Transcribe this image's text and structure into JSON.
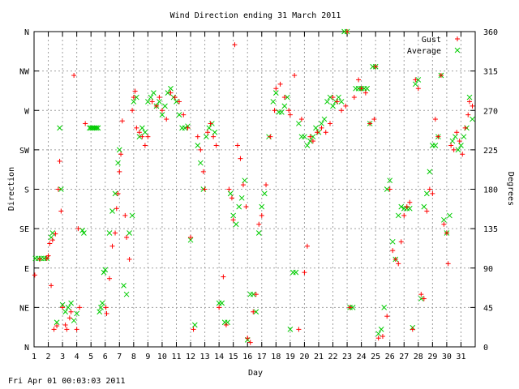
{
  "footer": {
    "timestamp": "Fri Apr 01 00:03:03 2011"
  },
  "chart_data": {
    "type": "scatter",
    "title": "Wind Direction ending 31 March 2011",
    "xlabel": "Day",
    "ylabel_left": "Direction",
    "ylabel_right": "Degrees",
    "xlim": [
      1,
      32
    ],
    "ylim": [
      0,
      360
    ],
    "x_ticks": [
      1,
      2,
      3,
      4,
      5,
      6,
      7,
      8,
      9,
      10,
      11,
      12,
      13,
      14,
      15,
      16,
      17,
      18,
      19,
      20,
      21,
      22,
      23,
      24,
      25,
      26,
      27,
      28,
      29,
      30,
      31
    ],
    "y_ticks_left": [
      {
        "label": "N",
        "value": 0
      },
      {
        "label": "NE",
        "value": 45
      },
      {
        "label": "E",
        "value": 90
      },
      {
        "label": "SE",
        "value": 135
      },
      {
        "label": "S",
        "value": 180
      },
      {
        "label": "SW",
        "value": 225
      },
      {
        "label": "W",
        "value": 270
      },
      {
        "label": "NW",
        "value": 315
      },
      {
        "label": "N",
        "value": 360
      }
    ],
    "y_ticks_right": [
      0,
      45,
      90,
      135,
      180,
      225,
      270,
      315,
      360
    ],
    "grid": true,
    "legend": "top-right",
    "series": [
      {
        "name": "Gust",
        "color": "#ff0000",
        "marker": "plus",
        "points": [
          [
            1.05,
            82
          ],
          [
            1.4,
            100
          ],
          [
            1.9,
            101
          ],
          [
            2.0,
            104
          ],
          [
            2.1,
            118
          ],
          [
            2.3,
            122
          ],
          [
            2.5,
            129
          ],
          [
            2.2,
            70
          ],
          [
            2.4,
            20
          ],
          [
            2.6,
            24
          ],
          [
            2.7,
            180
          ],
          [
            2.8,
            212
          ],
          [
            2.9,
            155
          ],
          [
            3.0,
            45
          ],
          [
            3.2,
            25
          ],
          [
            3.3,
            20
          ],
          [
            3.5,
            33
          ],
          [
            3.6,
            40
          ],
          [
            3.8,
            310
          ],
          [
            4.1,
            135
          ],
          [
            4.0,
            20
          ],
          [
            4.2,
            45
          ],
          [
            4.6,
            255
          ],
          [
            6.05,
            45
          ],
          [
            6.1,
            38
          ],
          [
            6.3,
            78
          ],
          [
            6.5,
            115
          ],
          [
            6.7,
            130
          ],
          [
            6.8,
            158
          ],
          [
            6.9,
            175
          ],
          [
            7.0,
            200
          ],
          [
            7.1,
            220
          ],
          [
            7.2,
            258
          ],
          [
            7.4,
            150
          ],
          [
            7.5,
            125
          ],
          [
            7.7,
            100
          ],
          [
            7.9,
            270
          ],
          [
            8.0,
            285
          ],
          [
            8.1,
            292
          ],
          [
            8.2,
            250
          ],
          [
            8.4,
            245
          ],
          [
            8.6,
            240
          ],
          [
            8.8,
            230
          ],
          [
            9.0,
            240
          ],
          [
            9.3,
            280
          ],
          [
            9.6,
            275
          ],
          [
            9.8,
            285
          ],
          [
            10.0,
            270
          ],
          [
            10.3,
            260
          ],
          [
            10.6,
            290
          ],
          [
            10.9,
            285
          ],
          [
            11.2,
            280
          ],
          [
            11.5,
            265
          ],
          [
            11.8,
            250
          ],
          [
            12.0,
            125
          ],
          [
            12.2,
            20
          ],
          [
            12.5,
            240
          ],
          [
            12.7,
            225
          ],
          [
            12.9,
            200
          ],
          [
            13.0,
            180
          ],
          [
            13.2,
            245
          ],
          [
            13.4,
            255
          ],
          [
            13.6,
            240
          ],
          [
            13.8,
            230
          ],
          [
            14.0,
            45
          ],
          [
            14.3,
            80
          ],
          [
            14.5,
            25
          ],
          [
            14.7,
            180
          ],
          [
            14.9,
            170
          ],
          [
            15.0,
            145
          ],
          [
            15.1,
            345
          ],
          [
            15.3,
            230
          ],
          [
            15.5,
            215
          ],
          [
            15.7,
            185
          ],
          [
            15.9,
            160
          ],
          [
            16.0,
            10
          ],
          [
            16.2,
            5
          ],
          [
            16.4,
            40
          ],
          [
            16.6,
            60
          ],
          [
            16.8,
            140
          ],
          [
            17.0,
            150
          ],
          [
            17.3,
            185
          ],
          [
            17.6,
            240
          ],
          [
            17.9,
            270
          ],
          [
            18.0,
            295
          ],
          [
            18.3,
            300
          ],
          [
            18.6,
            285
          ],
          [
            18.9,
            270
          ],
          [
            19.0,
            265
          ],
          [
            19.3,
            310
          ],
          [
            19.6,
            20
          ],
          [
            19.8,
            260
          ],
          [
            20.0,
            85
          ],
          [
            20.2,
            115
          ],
          [
            20.4,
            240
          ],
          [
            20.6,
            235
          ],
          [
            20.9,
            245
          ],
          [
            21.2,
            250
          ],
          [
            21.5,
            245
          ],
          [
            21.8,
            255
          ],
          [
            22.0,
            285
          ],
          [
            22.3,
            280
          ],
          [
            22.6,
            270
          ],
          [
            22.9,
            275
          ],
          [
            23.0,
            360
          ],
          [
            23.2,
            45
          ],
          [
            23.5,
            285
          ],
          [
            23.8,
            305
          ],
          [
            24.0,
            295
          ],
          [
            24.3,
            290
          ],
          [
            24.6,
            255
          ],
          [
            24.9,
            260
          ],
          [
            25.0,
            320
          ],
          [
            25.2,
            10
          ],
          [
            25.5,
            12
          ],
          [
            25.8,
            35
          ],
          [
            26.0,
            180
          ],
          [
            26.2,
            110
          ],
          [
            26.4,
            100
          ],
          [
            26.6,
            95
          ],
          [
            26.8,
            120
          ],
          [
            27.0,
            150
          ],
          [
            27.2,
            160
          ],
          [
            27.4,
            165
          ],
          [
            27.6,
            20
          ],
          [
            27.8,
            305
          ],
          [
            28.0,
            295
          ],
          [
            28.2,
            60
          ],
          [
            28.4,
            55
          ],
          [
            28.6,
            155
          ],
          [
            28.8,
            180
          ],
          [
            29.0,
            175
          ],
          [
            29.2,
            260
          ],
          [
            29.4,
            240
          ],
          [
            29.6,
            310
          ],
          [
            29.8,
            140
          ],
          [
            30.0,
            130
          ],
          [
            30.1,
            95
          ],
          [
            30.3,
            230
          ],
          [
            30.5,
            225
          ],
          [
            30.7,
            245
          ],
          [
            30.9,
            235
          ],
          [
            31.1,
            220
          ],
          [
            31.3,
            250
          ],
          [
            31.5,
            265
          ],
          [
            31.6,
            280
          ],
          [
            31.8,
            275
          ]
        ]
      },
      {
        "name": "Average",
        "color": "#00cc00",
        "marker": "x",
        "points": [
          [
            1.1,
            101
          ],
          [
            1.3,
            101
          ],
          [
            1.5,
            101
          ],
          [
            1.7,
            101
          ],
          [
            1.9,
            101
          ],
          [
            2.2,
            125
          ],
          [
            2.3,
            130
          ],
          [
            2.6,
            28
          ],
          [
            2.8,
            250
          ],
          [
            2.9,
            180
          ],
          [
            3.0,
            48
          ],
          [
            3.2,
            40
          ],
          [
            3.4,
            45
          ],
          [
            3.6,
            50
          ],
          [
            3.8,
            30
          ],
          [
            4.0,
            38
          ],
          [
            4.4,
            133
          ],
          [
            4.5,
            130
          ],
          [
            4.9,
            250
          ],
          [
            5.0,
            250
          ],
          [
            5.1,
            250
          ],
          [
            5.2,
            250
          ],
          [
            5.3,
            250
          ],
          [
            5.4,
            250
          ],
          [
            5.5,
            250
          ],
          [
            5.6,
            40
          ],
          [
            5.7,
            45
          ],
          [
            5.8,
            50
          ],
          [
            5.9,
            85
          ],
          [
            6.0,
            88
          ],
          [
            6.3,
            130
          ],
          [
            6.5,
            155
          ],
          [
            6.7,
            175
          ],
          [
            6.9,
            210
          ],
          [
            7.0,
            225
          ],
          [
            7.3,
            70
          ],
          [
            7.5,
            60
          ],
          [
            7.7,
            130
          ],
          [
            7.9,
            150
          ],
          [
            8.0,
            280
          ],
          [
            8.2,
            285
          ],
          [
            8.4,
            240
          ],
          [
            8.6,
            250
          ],
          [
            8.8,
            245
          ],
          [
            9.0,
            280
          ],
          [
            9.2,
            285
          ],
          [
            9.4,
            290
          ],
          [
            9.6,
            275
          ],
          [
            9.8,
            280
          ],
          [
            10.0,
            265
          ],
          [
            10.2,
            275
          ],
          [
            10.4,
            290
          ],
          [
            10.6,
            295
          ],
          [
            10.8,
            285
          ],
          [
            11.0,
            280
          ],
          [
            11.2,
            265
          ],
          [
            11.4,
            250
          ],
          [
            11.6,
            250
          ],
          [
            11.8,
            252
          ],
          [
            12.0,
            122
          ],
          [
            12.3,
            25
          ],
          [
            12.5,
            230
          ],
          [
            12.7,
            210
          ],
          [
            12.9,
            180
          ],
          [
            13.1,
            240
          ],
          [
            13.3,
            250
          ],
          [
            13.5,
            255
          ],
          [
            13.7,
            245
          ],
          [
            14.0,
            50
          ],
          [
            14.2,
            50
          ],
          [
            14.4,
            28
          ],
          [
            14.6,
            28
          ],
          [
            14.8,
            175
          ],
          [
            15.0,
            150
          ],
          [
            15.2,
            140
          ],
          [
            15.4,
            160
          ],
          [
            15.6,
            170
          ],
          [
            15.8,
            190
          ],
          [
            16.0,
            8
          ],
          [
            16.2,
            60
          ],
          [
            16.4,
            60
          ],
          [
            16.6,
            40
          ],
          [
            16.8,
            130
          ],
          [
            17.0,
            160
          ],
          [
            17.2,
            175
          ],
          [
            17.5,
            240
          ],
          [
            17.8,
            280
          ],
          [
            18.0,
            290
          ],
          [
            18.2,
            268
          ],
          [
            18.4,
            268
          ],
          [
            18.6,
            275
          ],
          [
            18.8,
            285
          ],
          [
            19.0,
            20
          ],
          [
            19.2,
            85
          ],
          [
            19.4,
            85
          ],
          [
            19.6,
            255
          ],
          [
            19.8,
            240
          ],
          [
            20.0,
            240
          ],
          [
            20.2,
            230
          ],
          [
            20.4,
            235
          ],
          [
            20.6,
            240
          ],
          [
            20.8,
            250
          ],
          [
            21.0,
            245
          ],
          [
            21.2,
            255
          ],
          [
            21.4,
            260
          ],
          [
            21.6,
            280
          ],
          [
            21.8,
            285
          ],
          [
            22.0,
            275
          ],
          [
            22.2,
            280
          ],
          [
            22.4,
            285
          ],
          [
            22.6,
            280
          ],
          [
            22.8,
            360
          ],
          [
            23.0,
            360
          ],
          [
            23.2,
            45
          ],
          [
            23.4,
            45
          ],
          [
            23.6,
            295
          ],
          [
            23.8,
            295
          ],
          [
            24.0,
            295
          ],
          [
            24.2,
            295
          ],
          [
            24.4,
            295
          ],
          [
            24.6,
            255
          ],
          [
            24.8,
            320
          ],
          [
            25.0,
            320
          ],
          [
            25.2,
            15
          ],
          [
            25.4,
            20
          ],
          [
            25.6,
            45
          ],
          [
            25.8,
            180
          ],
          [
            26.0,
            190
          ],
          [
            26.2,
            120
          ],
          [
            26.4,
            100
          ],
          [
            26.6,
            150
          ],
          [
            26.8,
            160
          ],
          [
            27.0,
            158
          ],
          [
            27.2,
            158
          ],
          [
            27.4,
            158
          ],
          [
            27.6,
            22
          ],
          [
            27.8,
            300
          ],
          [
            28.0,
            305
          ],
          [
            28.2,
            55
          ],
          [
            28.4,
            160
          ],
          [
            28.6,
            175
          ],
          [
            28.8,
            200
          ],
          [
            29.0,
            230
          ],
          [
            29.2,
            230
          ],
          [
            29.4,
            240
          ],
          [
            29.6,
            310
          ],
          [
            29.8,
            145
          ],
          [
            30.0,
            130
          ],
          [
            30.2,
            150
          ],
          [
            30.4,
            235
          ],
          [
            30.6,
            240
          ],
          [
            30.8,
            225
          ],
          [
            31.0,
            230
          ],
          [
            31.2,
            240
          ],
          [
            31.4,
            250
          ],
          [
            31.6,
            285
          ],
          [
            31.8,
            260
          ]
        ]
      }
    ]
  }
}
